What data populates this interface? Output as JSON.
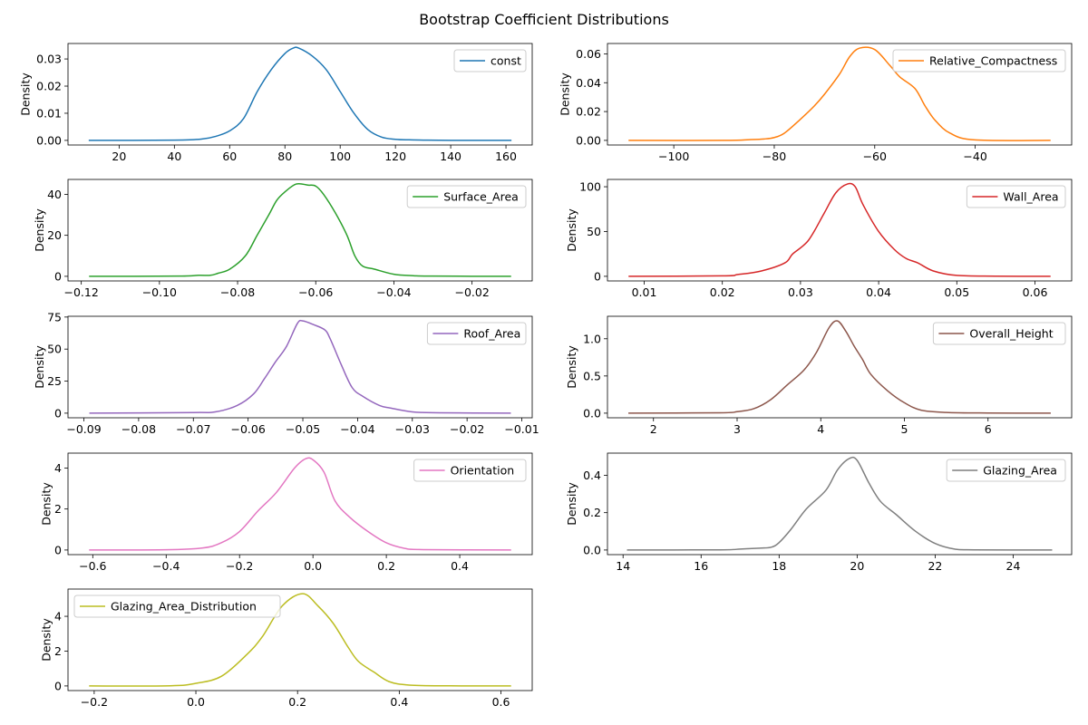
{
  "figure_title": "Bootstrap Coefficient Distributions",
  "chart_data": [
    {
      "type": "line",
      "title": "",
      "xlabel": "",
      "ylabel": "Density",
      "grid": false,
      "legend_placement": "upper right",
      "series": [
        {
          "name": "const",
          "color": "#1f77b4",
          "x": [
            9,
            40,
            50,
            55,
            60,
            65,
            70,
            75,
            80,
            83,
            85,
            90,
            95,
            100,
            105,
            110,
            115,
            120,
            125,
            130,
            140,
            162
          ],
          "y": [
            0,
            0.0001,
            0.0005,
            0.0015,
            0.0035,
            0.008,
            0.018,
            0.026,
            0.032,
            0.034,
            0.034,
            0.031,
            0.026,
            0.018,
            0.01,
            0.004,
            0.0012,
            0.0004,
            0.0002,
            0.0001,
            0,
            0
          ]
        }
      ],
      "xlim": [
        1.5,
        169.5
      ],
      "ylim": [
        -0.0017,
        0.0357
      ],
      "xticks": [
        20,
        40,
        60,
        80,
        100,
        120,
        140,
        160
      ],
      "xtick_labels": [
        "20",
        "40",
        "60",
        "80",
        "100",
        "120",
        "140",
        "160"
      ],
      "yticks": [
        0,
        0.01,
        0.02,
        0.03
      ],
      "ytick_labels": [
        "0.00",
        "0.01",
        "0.02",
        "0.03"
      ]
    },
    {
      "type": "line",
      "title": "",
      "xlabel": "",
      "ylabel": "Density",
      "grid": false,
      "legend_placement": "upper right",
      "series": [
        {
          "name": "Relative_Compactness",
          "color": "#ff7f0e",
          "x": [
            -109,
            -90,
            -85,
            -82,
            -80,
            -78,
            -75,
            -72,
            -70,
            -67,
            -65,
            -63,
            -60,
            -57,
            -55,
            -52,
            -50,
            -48,
            -45,
            -40,
            -25
          ],
          "y": [
            0,
            0,
            0.0005,
            0.001,
            0.002,
            0.005,
            0.014,
            0.024,
            0.032,
            0.046,
            0.058,
            0.064,
            0.063,
            0.052,
            0.044,
            0.036,
            0.024,
            0.014,
            0.005,
            0.0003,
            0
          ]
        }
      ],
      "xlim": [
        -113.2,
        -20.8
      ],
      "ylim": [
        -0.0032,
        0.0672
      ],
      "xticks": [
        -100,
        -80,
        -60,
        -40
      ],
      "xtick_labels": [
        "−100",
        "−80",
        "−60",
        "−40"
      ],
      "yticks": [
        0,
        0.02,
        0.04,
        0.06
      ],
      "ytick_labels": [
        "0.00",
        "0.02",
        "0.04",
        "0.06"
      ]
    },
    {
      "type": "line",
      "title": "",
      "xlabel": "",
      "ylabel": "Density",
      "grid": false,
      "legend_placement": "upper right",
      "series": [
        {
          "name": "Surface_Area",
          "color": "#2ca02c",
          "x": [
            -0.118,
            -0.095,
            -0.09,
            -0.087,
            -0.085,
            -0.082,
            -0.078,
            -0.075,
            -0.072,
            -0.07,
            -0.068,
            -0.065,
            -0.062,
            -0.06,
            -0.058,
            -0.055,
            -0.052,
            -0.05,
            -0.048,
            -0.045,
            -0.04,
            -0.035,
            -0.03,
            -0.01
          ],
          "y": [
            0,
            0.1,
            0.5,
            0.5,
            1.5,
            3.5,
            10,
            20,
            30,
            37,
            41,
            45,
            44.5,
            44,
            40,
            31,
            20,
            10,
            5,
            3.5,
            1,
            0.3,
            0.1,
            0
          ]
        }
      ],
      "xlim": [
        -0.1234,
        -0.0046
      ],
      "ylim": [
        -2.25,
        47.25
      ],
      "xticks": [
        -0.12,
        -0.1,
        -0.08,
        -0.06,
        -0.04,
        -0.02
      ],
      "xtick_labels": [
        "−0.12",
        "−0.10",
        "−0.08",
        "−0.06",
        "−0.04",
        "−0.02"
      ],
      "yticks": [
        0,
        20,
        40
      ],
      "ytick_labels": [
        "0",
        "20",
        "40"
      ]
    },
    {
      "type": "line",
      "title": "",
      "xlabel": "",
      "ylabel": "Density",
      "grid": false,
      "legend_placement": "upper right",
      "series": [
        {
          "name": "Wall_Area",
          "color": "#d62728",
          "x": [
            0.008,
            0.02,
            0.022,
            0.025,
            0.028,
            0.029,
            0.031,
            0.033,
            0.0345,
            0.036,
            0.037,
            0.038,
            0.04,
            0.042,
            0.0435,
            0.045,
            0.047,
            0.05,
            0.055,
            0.062
          ],
          "y": [
            0,
            0.5,
            2,
            6,
            15,
            25,
            40,
            70,
            93,
            103,
            100,
            80,
            50,
            30,
            20,
            15,
            6,
            1,
            0.2,
            0
          ]
        }
      ],
      "xlim": [
        0.0053,
        0.0647
      ],
      "ylim": [
        -5.15,
        108.15
      ],
      "xticks": [
        0.01,
        0.02,
        0.03,
        0.04,
        0.05,
        0.06
      ],
      "xtick_labels": [
        "0.01",
        "0.02",
        "0.03",
        "0.04",
        "0.05",
        "0.06"
      ],
      "yticks": [
        0,
        50,
        100
      ],
      "ytick_labels": [
        "0",
        "50",
        "100"
      ]
    },
    {
      "type": "line",
      "title": "",
      "xlabel": "",
      "ylabel": "Density",
      "grid": false,
      "legend_placement": "upper right",
      "series": [
        {
          "name": "Roof_Area",
          "color": "#9467bd",
          "x": [
            -0.089,
            -0.07,
            -0.066,
            -0.062,
            -0.059,
            -0.057,
            -0.055,
            -0.053,
            -0.051,
            -0.05,
            -0.048,
            -0.046,
            -0.045,
            -0.043,
            -0.041,
            -0.039,
            -0.036,
            -0.034,
            -0.03,
            -0.025,
            -0.012
          ],
          "y": [
            0,
            0.5,
            1,
            6,
            15,
            27,
            40,
            52,
            70,
            72,
            69,
            65,
            58,
            38,
            20,
            13,
            6,
            4,
            1,
            0.3,
            0
          ]
        }
      ],
      "xlim": [
        -0.0929,
        -0.0081
      ],
      "ylim": [
        -3.6,
        75.6
      ],
      "xticks": [
        -0.09,
        -0.08,
        -0.07,
        -0.06,
        -0.05,
        -0.04,
        -0.03,
        -0.02,
        -0.01
      ],
      "xtick_labels": [
        "−0.09",
        "−0.08",
        "−0.07",
        "−0.06",
        "−0.05",
        "−0.04",
        "−0.03",
        "−0.02",
        "−0.01"
      ],
      "yticks": [
        0,
        25,
        50,
        75
      ],
      "ytick_labels": [
        "0",
        "25",
        "50",
        "75"
      ]
    },
    {
      "type": "line",
      "title": "",
      "xlabel": "",
      "ylabel": "Density",
      "grid": false,
      "legend_placement": "upper right",
      "series": [
        {
          "name": "Overall_Height",
          "color": "#8c564b",
          "x": [
            1.7,
            2.8,
            3.0,
            3.2,
            3.4,
            3.6,
            3.8,
            3.95,
            4.1,
            4.2,
            4.3,
            4.4,
            4.5,
            4.6,
            4.8,
            5.0,
            5.2,
            5.5,
            6.0,
            6.75
          ],
          "y": [
            0,
            0.005,
            0.02,
            0.06,
            0.18,
            0.38,
            0.58,
            0.82,
            1.15,
            1.24,
            1.1,
            0.9,
            0.72,
            0.52,
            0.3,
            0.14,
            0.04,
            0.01,
            0.002,
            0
          ]
        }
      ],
      "xlim": [
        1.45,
        7.0
      ],
      "ylim": [
        -0.062,
        1.302
      ],
      "xticks": [
        2,
        3,
        4,
        5,
        6
      ],
      "xtick_labels": [
        "2",
        "3",
        "4",
        "5",
        "6"
      ],
      "yticks": [
        0,
        0.5,
        1.0
      ],
      "ytick_labels": [
        "0.0",
        "0.5",
        "1.0"
      ]
    },
    {
      "type": "line",
      "title": "",
      "xlabel": "",
      "ylabel": "Density",
      "grid": false,
      "legend_placement": "upper right",
      "series": [
        {
          "name": "Orientation",
          "color": "#e377c2",
          "x": [
            -0.61,
            -0.4,
            -0.3,
            -0.25,
            -0.2,
            -0.15,
            -0.1,
            -0.05,
            -0.02,
            0.0,
            0.03,
            0.06,
            0.1,
            0.15,
            0.2,
            0.25,
            0.3,
            0.54
          ],
          "y": [
            0,
            0.01,
            0.1,
            0.35,
            0.9,
            1.9,
            2.8,
            4.0,
            4.45,
            4.4,
            3.8,
            2.4,
            1.6,
            0.9,
            0.35,
            0.08,
            0.02,
            0
          ]
        }
      ],
      "xlim": [
        -0.6675,
        0.5975
      ],
      "ylim": [
        -0.225,
        4.725
      ],
      "xticks": [
        -0.6,
        -0.4,
        -0.2,
        0.0,
        0.2,
        0.4
      ],
      "xtick_labels": [
        "−0.6",
        "−0.4",
        "−0.2",
        "0.0",
        "0.2",
        "0.4"
      ],
      "yticks": [
        0,
        2,
        4
      ],
      "ytick_labels": [
        "0",
        "2",
        "4"
      ]
    },
    {
      "type": "line",
      "title": "",
      "xlabel": "",
      "ylabel": "Density",
      "grid": false,
      "legend_placement": "upper right",
      "series": [
        {
          "name": "Glazing_Area",
          "color": "#7f7f7f",
          "x": [
            14.1,
            16.5,
            17.0,
            17.5,
            17.8,
            18.0,
            18.3,
            18.7,
            19.2,
            19.5,
            19.8,
            20.0,
            20.3,
            20.6,
            21.0,
            21.5,
            22.0,
            22.5,
            23.0,
            25.0
          ],
          "y": [
            0,
            0.001,
            0.005,
            0.01,
            0.015,
            0.04,
            0.11,
            0.22,
            0.32,
            0.43,
            0.49,
            0.48,
            0.36,
            0.26,
            0.19,
            0.1,
            0.035,
            0.005,
            0.001,
            0
          ]
        }
      ],
      "xlim": [
        13.6,
        25.5
      ],
      "ylim": [
        -0.0247,
        0.5187
      ],
      "xticks": [
        14,
        16,
        18,
        20,
        22,
        24
      ],
      "xtick_labels": [
        "14",
        "16",
        "18",
        "20",
        "22",
        "24"
      ],
      "yticks": [
        0,
        0.2,
        0.4
      ],
      "ytick_labels": [
        "0.0",
        "0.2",
        "0.4"
      ]
    },
    {
      "type": "line",
      "title": "",
      "xlabel": "",
      "ylabel": "Density",
      "grid": false,
      "legend_placement": "upper left",
      "series": [
        {
          "name": "Glazing_Area_Distribution",
          "color": "#bcbd22",
          "x": [
            -0.21,
            -0.05,
            0.0,
            0.05,
            0.1,
            0.13,
            0.17,
            0.21,
            0.24,
            0.27,
            0.3,
            0.32,
            0.35,
            0.38,
            0.42,
            0.5,
            0.62
          ],
          "y": [
            0,
            0.01,
            0.15,
            0.55,
            1.8,
            2.8,
            4.6,
            5.3,
            4.6,
            3.6,
            2.2,
            1.4,
            0.8,
            0.25,
            0.05,
            0.005,
            0
          ]
        }
      ],
      "xlim": [
        -0.2515,
        0.6615
      ],
      "ylim": [
        -0.265,
        5.565
      ],
      "xticks": [
        -0.2,
        0.0,
        0.2,
        0.4,
        0.6
      ],
      "xtick_labels": [
        "−0.2",
        "0.0",
        "0.2",
        "0.4",
        "0.6"
      ],
      "yticks": [
        0,
        2,
        4
      ],
      "ytick_labels": [
        "0",
        "2",
        "4"
      ]
    }
  ]
}
